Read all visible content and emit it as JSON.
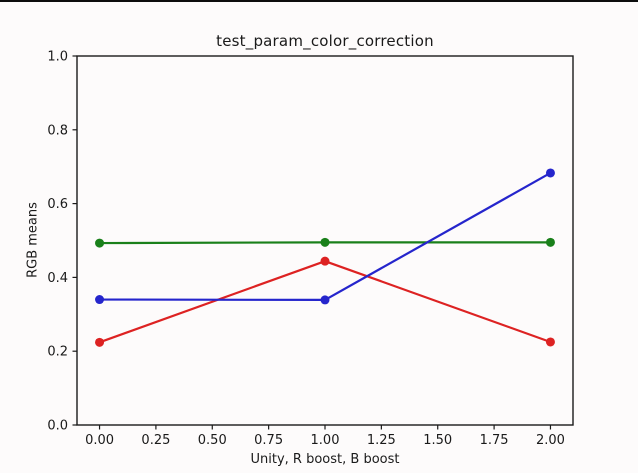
{
  "window": {
    "top_strip_color": "#0d0d0d",
    "background_color": "#fdfbfb"
  },
  "chart_data": {
    "type": "line",
    "title": "test_param_color_correction",
    "xlabel": "Unity, R boost, B boost",
    "ylabel": "RGB means",
    "x": [
      0,
      1,
      2
    ],
    "series": [
      {
        "name": "red",
        "color": "#dd2222",
        "values": [
          0.224,
          0.444,
          0.225
        ]
      },
      {
        "name": "green",
        "color": "#1a801a",
        "values": [
          0.493,
          0.495,
          0.495
        ]
      },
      {
        "name": "blue",
        "color": "#2525cc",
        "values": [
          0.34,
          0.339,
          0.683
        ]
      }
    ],
    "xlim": [
      -0.1,
      2.1
    ],
    "ylim": [
      0.0,
      1.0
    ],
    "xticks": {
      "values": [
        0,
        0.25,
        0.5,
        0.75,
        1.0,
        1.25,
        1.5,
        1.75,
        2.0
      ],
      "labels": [
        "0.00",
        "0.25",
        "0.50",
        "0.75",
        "1.00",
        "1.25",
        "1.50",
        "1.75",
        "2.00"
      ]
    },
    "yticks": {
      "values": [
        0.0,
        0.2,
        0.4,
        0.6,
        0.8,
        1.0
      ],
      "labels": [
        "0.0",
        "0.2",
        "0.4",
        "0.6",
        "0.8",
        "1.0"
      ]
    },
    "grid": false,
    "legend": null,
    "marker": "o",
    "axis_color": "#1a1a1a"
  }
}
